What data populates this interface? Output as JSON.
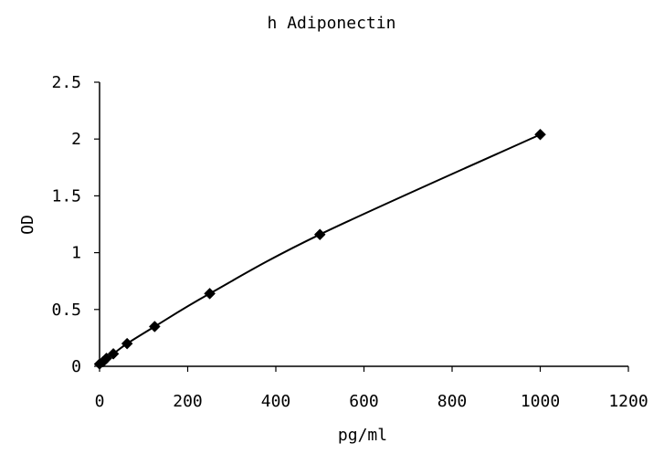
{
  "chart_data": {
    "type": "scatter",
    "title": "h Adiponectin",
    "xlabel": "pg/ml",
    "ylabel": "OD",
    "xlim": [
      0,
      1200
    ],
    "ylim": [
      0,
      2.5
    ],
    "x_ticks": [
      "0",
      "200",
      "400",
      "600",
      "800",
      "1000",
      "1200"
    ],
    "y_ticks": [
      "0",
      "0.5",
      "1",
      "1.5",
      "2",
      "2.5"
    ],
    "grid": false,
    "legend": "none",
    "marker": "diamond",
    "color": "#000000",
    "smooth_line": true,
    "series": [
      {
        "x": [
          0,
          7.8,
          15.6,
          31.25,
          62.5,
          125,
          250,
          500,
          1000
        ],
        "y": [
          0.02,
          0.04,
          0.07,
          0.11,
          0.2,
          0.35,
          0.64,
          1.16,
          2.04
        ]
      }
    ]
  }
}
